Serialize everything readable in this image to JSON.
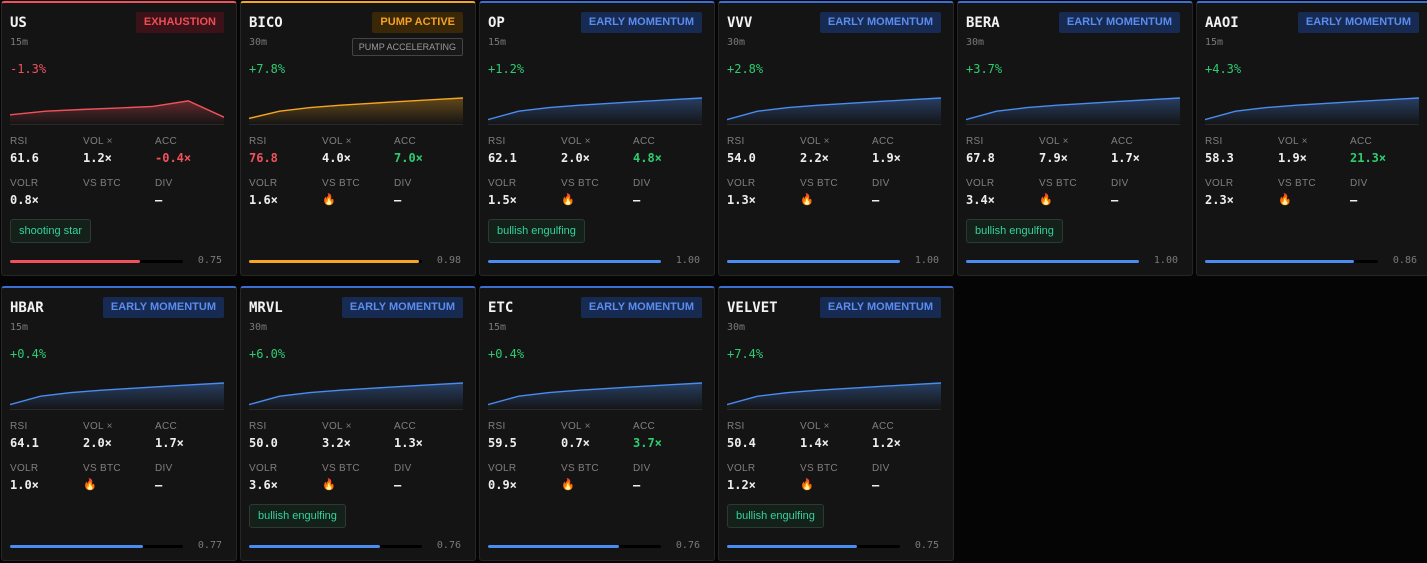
{
  "labels": {
    "rsi": "RSI",
    "vol": "VOL ×",
    "acc": "ACC",
    "volr": "VOLR",
    "vsbtc": "VS BTC",
    "div": "DIV"
  },
  "colors": {
    "blue": "#4a8cf0",
    "red": "#f0525c",
    "orange": "#f5a623",
    "green": "#2ecc71"
  },
  "cards": [
    {
      "symbol": "US",
      "timeframe": "15m",
      "badge": "EXHAUSTION",
      "badge_style": "red",
      "theme": "red",
      "sub_badge": "",
      "change": "-1.3%",
      "change_dir": "down",
      "spark": [
        0.3,
        0.45,
        0.52,
        0.58,
        0.65,
        0.88,
        0.2
      ],
      "rsi": "61.6",
      "rsi_style": "",
      "vol": "1.2×",
      "acc": "-0.4×",
      "acc_style": "red",
      "volr": "0.8×",
      "vs_btc": "",
      "div": "—",
      "pattern": "shooting star",
      "score_fraction": 0.75,
      "score": "0.75"
    },
    {
      "symbol": "BICO",
      "timeframe": "30m",
      "badge": "PUMP ACTIVE",
      "badge_style": "orange",
      "theme": "orange",
      "sub_badge": "PUMP ACCELERATING",
      "change": "+7.8%",
      "change_dir": "up",
      "spark": [
        0.15,
        0.45,
        0.6,
        0.7,
        0.78,
        0.86,
        0.93,
        1.0
      ],
      "rsi": "76.8",
      "rsi_style": "red",
      "vol": "4.0×",
      "acc": "7.0×",
      "acc_style": "green",
      "volr": "1.6×",
      "vs_btc": "🔥",
      "div": "—",
      "pattern": "",
      "score_fraction": 0.98,
      "score": "0.98"
    },
    {
      "symbol": "OP",
      "timeframe": "15m",
      "badge": "EARLY MOMENTUM",
      "badge_style": "blue",
      "theme": "blue",
      "sub_badge": "",
      "change": "+1.2%",
      "change_dir": "up",
      "spark": [
        0.1,
        0.45,
        0.6,
        0.7,
        0.78,
        0.86,
        0.93,
        1.0
      ],
      "rsi": "62.1",
      "rsi_style": "",
      "vol": "2.0×",
      "acc": "4.8×",
      "acc_style": "green",
      "volr": "1.5×",
      "vs_btc": "🔥",
      "div": "—",
      "pattern": "bullish engulfing",
      "score_fraction": 1.0,
      "score": "1.00"
    },
    {
      "symbol": "VVV",
      "timeframe": "30m",
      "badge": "EARLY MOMENTUM",
      "badge_style": "blue",
      "theme": "blue",
      "sub_badge": "",
      "change": "+2.8%",
      "change_dir": "up",
      "spark": [
        0.1,
        0.45,
        0.6,
        0.7,
        0.78,
        0.86,
        0.93,
        1.0
      ],
      "rsi": "54.0",
      "rsi_style": "",
      "vol": "2.2×",
      "acc": "1.9×",
      "acc_style": "",
      "volr": "1.3×",
      "vs_btc": "🔥",
      "div": "—",
      "pattern": "",
      "score_fraction": 1.0,
      "score": "1.00"
    },
    {
      "symbol": "BERA",
      "timeframe": "30m",
      "badge": "EARLY MOMENTUM",
      "badge_style": "blue",
      "theme": "blue",
      "sub_badge": "",
      "change": "+3.7%",
      "change_dir": "up",
      "spark": [
        0.1,
        0.45,
        0.6,
        0.7,
        0.78,
        0.86,
        0.93,
        1.0
      ],
      "rsi": "67.8",
      "rsi_style": "",
      "vol": "7.9×",
      "acc": "1.7×",
      "acc_style": "",
      "volr": "3.4×",
      "vs_btc": "🔥",
      "div": "—",
      "pattern": "bullish engulfing",
      "score_fraction": 1.0,
      "score": "1.00"
    },
    {
      "symbol": "AAOI",
      "timeframe": "15m",
      "badge": "EARLY MOMENTUM",
      "badge_style": "blue",
      "theme": "blue",
      "sub_badge": "",
      "change": "+4.3%",
      "change_dir": "up",
      "spark": [
        0.1,
        0.45,
        0.6,
        0.7,
        0.78,
        0.86,
        0.93,
        1.0
      ],
      "rsi": "58.3",
      "rsi_style": "",
      "vol": "1.9×",
      "acc": "21.3×",
      "acc_style": "green",
      "volr": "2.3×",
      "vs_btc": "🔥",
      "div": "—",
      "pattern": "",
      "score_fraction": 0.86,
      "score": "0.86"
    },
    {
      "symbol": "HBAR",
      "timeframe": "15m",
      "badge": "EARLY MOMENTUM",
      "badge_style": "blue",
      "theme": "blue",
      "sub_badge": "",
      "change": "+0.4%",
      "change_dir": "up",
      "spark": [
        0.1,
        0.45,
        0.6,
        0.7,
        0.78,
        0.86,
        0.93,
        1.0
      ],
      "rsi": "64.1",
      "rsi_style": "",
      "vol": "2.0×",
      "acc": "1.7×",
      "acc_style": "",
      "volr": "1.0×",
      "vs_btc": "🔥",
      "div": "—",
      "pattern": "",
      "score_fraction": 0.77,
      "score": "0.77"
    },
    {
      "symbol": "MRVL",
      "timeframe": "30m",
      "badge": "EARLY MOMENTUM",
      "badge_style": "blue",
      "theme": "blue",
      "sub_badge": "",
      "change": "+6.0%",
      "change_dir": "up",
      "spark": [
        0.1,
        0.45,
        0.6,
        0.7,
        0.78,
        0.86,
        0.93,
        1.0
      ],
      "rsi": "50.0",
      "rsi_style": "",
      "vol": "3.2×",
      "acc": "1.3×",
      "acc_style": "",
      "volr": "3.6×",
      "vs_btc": "🔥",
      "div": "—",
      "pattern": "bullish engulfing",
      "score_fraction": 0.76,
      "score": "0.76"
    },
    {
      "symbol": "ETC",
      "timeframe": "15m",
      "badge": "EARLY MOMENTUM",
      "badge_style": "blue",
      "theme": "blue",
      "sub_badge": "",
      "change": "+0.4%",
      "change_dir": "up",
      "spark": [
        0.1,
        0.45,
        0.6,
        0.7,
        0.78,
        0.86,
        0.93,
        1.0
      ],
      "rsi": "59.5",
      "rsi_style": "",
      "vol": "0.7×",
      "acc": "3.7×",
      "acc_style": "green",
      "volr": "0.9×",
      "vs_btc": "🔥",
      "div": "—",
      "pattern": "",
      "score_fraction": 0.76,
      "score": "0.76"
    },
    {
      "symbol": "VELVET",
      "timeframe": "30m",
      "badge": "EARLY MOMENTUM",
      "badge_style": "blue",
      "theme": "blue",
      "sub_badge": "",
      "change": "+7.4%",
      "change_dir": "up",
      "spark": [
        0.1,
        0.45,
        0.6,
        0.7,
        0.78,
        0.86,
        0.93,
        1.0
      ],
      "rsi": "50.4",
      "rsi_style": "",
      "vol": "1.4×",
      "acc": "1.2×",
      "acc_style": "",
      "volr": "1.2×",
      "vs_btc": "🔥",
      "div": "—",
      "pattern": "bullish engulfing",
      "score_fraction": 0.75,
      "score": "0.75"
    }
  ]
}
